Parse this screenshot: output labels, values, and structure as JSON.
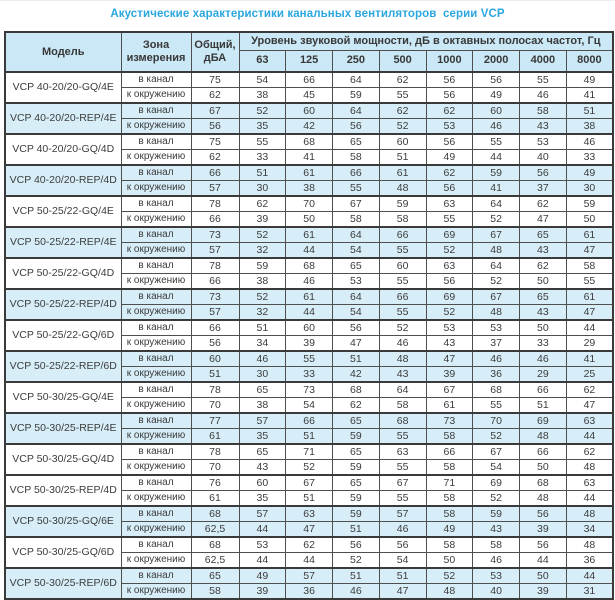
{
  "title": "Акустические характеристики канальных вентиляторов  серии VCP",
  "colors": {
    "accent_title": "#2ba7df",
    "header_bg": "#cbe8f6",
    "shaded_row_bg": "#d7eef9",
    "border": "#4f4f4f",
    "text": "#3c3c3c"
  },
  "table": {
    "headers": {
      "model": "Модель",
      "zone": "Зона измерения",
      "total": "Общий, дБА",
      "level": "Уровень звуковой мощности, дБ в октавных полосах частот, Гц",
      "freqs": [
        "63",
        "125",
        "250",
        "500",
        "1000",
        "2000",
        "4000",
        "8000"
      ]
    },
    "groups": [
      {
        "model": "VCP 40-20/20-GQ/4E",
        "shaded": false,
        "rows": [
          {
            "zone": "в канал",
            "total": "75",
            "values": [
              "54",
              "66",
              "64",
              "62",
              "56",
              "56",
              "55",
              "49"
            ]
          },
          {
            "zone": "к окружению",
            "total": "62",
            "values": [
              "38",
              "45",
              "59",
              "55",
              "56",
              "49",
              "46",
              "41"
            ]
          }
        ]
      },
      {
        "model": "VCP 40-20/20-REP/4E",
        "shaded": true,
        "rows": [
          {
            "zone": "в канал",
            "total": "67",
            "values": [
              "52",
              "60",
              "64",
              "62",
              "62",
              "60",
              "58",
              "51"
            ]
          },
          {
            "zone": "к окружению",
            "total": "56",
            "values": [
              "35",
              "42",
              "56",
              "52",
              "53",
              "46",
              "43",
              "38"
            ]
          }
        ]
      },
      {
        "model": "VCP 40-20/20-GQ/4D",
        "shaded": false,
        "rows": [
          {
            "zone": "в канал",
            "total": "75",
            "values": [
              "55",
              "68",
              "65",
              "60",
              "56",
              "55",
              "53",
              "46"
            ]
          },
          {
            "zone": "к окружению",
            "total": "62",
            "values": [
              "33",
              "41",
              "58",
              "51",
              "49",
              "44",
              "40",
              "33"
            ]
          }
        ]
      },
      {
        "model": "VCP 40-20/20-REP/4D",
        "shaded": true,
        "rows": [
          {
            "zone": "в канал",
            "total": "66",
            "values": [
              "51",
              "61",
              "66",
              "61",
              "62",
              "59",
              "56",
              "49"
            ]
          },
          {
            "zone": "к окружению",
            "total": "57",
            "values": [
              "30",
              "38",
              "55",
              "48",
              "56",
              "41",
              "37",
              "30"
            ]
          }
        ]
      },
      {
        "model": "VCP 50-25/22-GQ/4E",
        "shaded": false,
        "rows": [
          {
            "zone": "в канал",
            "total": "78",
            "values": [
              "62",
              "70",
              "67",
              "59",
              "63",
              "64",
              "62",
              "59"
            ]
          },
          {
            "zone": "к окружению",
            "total": "66",
            "values": [
              "39",
              "50",
              "58",
              "58",
              "55",
              "52",
              "47",
              "50"
            ]
          }
        ]
      },
      {
        "model": "VCP 50-25/22-REP/4E",
        "shaded": true,
        "rows": [
          {
            "zone": "в канал",
            "total": "73",
            "values": [
              "52",
              "61",
              "64",
              "66",
              "69",
              "67",
              "65",
              "61"
            ]
          },
          {
            "zone": "к окружению",
            "total": "57",
            "values": [
              "32",
              "44",
              "54",
              "55",
              "52",
              "48",
              "43",
              "47"
            ]
          }
        ]
      },
      {
        "model": "VCP 50-25/22-GQ/4D",
        "shaded": false,
        "rows": [
          {
            "zone": "в канал",
            "total": "78",
            "values": [
              "59",
              "68",
              "65",
              "60",
              "63",
              "64",
              "62",
              "58"
            ]
          },
          {
            "zone": "к окружению",
            "total": "66",
            "values": [
              "38",
              "46",
              "53",
              "55",
              "56",
              "52",
              "50",
              "55"
            ]
          }
        ]
      },
      {
        "model": "VCP 50-25/22-REP/4D",
        "shaded": true,
        "rows": [
          {
            "zone": "в канал",
            "total": "73",
            "values": [
              "52",
              "61",
              "64",
              "66",
              "69",
              "67",
              "65",
              "61"
            ]
          },
          {
            "zone": "к окружению",
            "total": "57",
            "values": [
              "32",
              "44",
              "54",
              "55",
              "52",
              "48",
              "43",
              "47"
            ]
          }
        ]
      },
      {
        "model": "VCP 50-25/22-GQ/6D",
        "shaded": false,
        "rows": [
          {
            "zone": "в канал",
            "total": "66",
            "values": [
              "51",
              "60",
              "56",
              "52",
              "53",
              "53",
              "50",
              "44"
            ]
          },
          {
            "zone": "к окружению",
            "total": "56",
            "values": [
              "34",
              "39",
              "47",
              "46",
              "43",
              "37",
              "33",
              "29"
            ]
          }
        ]
      },
      {
        "model": "VCP 50-25/22-REP/6D",
        "shaded": true,
        "rows": [
          {
            "zone": "в канал",
            "total": "60",
            "values": [
              "46",
              "55",
              "51",
              "48",
              "47",
              "46",
              "46",
              "41"
            ]
          },
          {
            "zone": "к окружению",
            "total": "51",
            "values": [
              "30",
              "33",
              "42",
              "43",
              "39",
              "36",
              "29",
              "25"
            ]
          }
        ]
      },
      {
        "model": "VCP 50-30/25-GQ/4E",
        "shaded": false,
        "rows": [
          {
            "zone": "в канал",
            "total": "78",
            "values": [
              "65",
              "73",
              "68",
              "64",
              "67",
              "68",
              "66",
              "62"
            ]
          },
          {
            "zone": "к окружению",
            "total": "70",
            "values": [
              "38",
              "54",
              "62",
              "58",
              "61",
              "55",
              "51",
              "47"
            ]
          }
        ]
      },
      {
        "model": "VCP 50-30/25-REP/4E",
        "shaded": true,
        "rows": [
          {
            "zone": "в канал",
            "total": "77",
            "values": [
              "57",
              "66",
              "65",
              "68",
              "73",
              "70",
              "69",
              "63"
            ]
          },
          {
            "zone": "к окружению",
            "total": "61",
            "values": [
              "35",
              "51",
              "59",
              "55",
              "58",
              "52",
              "48",
              "44"
            ]
          }
        ]
      },
      {
        "model": "VCP 50-30/25-GQ/4D",
        "shaded": false,
        "rows": [
          {
            "zone": "в канал",
            "total": "78",
            "values": [
              "65",
              "71",
              "65",
              "63",
              "66",
              "67",
              "66",
              "62"
            ]
          },
          {
            "zone": "к окружению",
            "total": "70",
            "values": [
              "43",
              "52",
              "59",
              "55",
              "58",
              "54",
              "50",
              "48"
            ]
          }
        ]
      },
      {
        "model": "VCP 50-30/25-REP/4D",
        "shaded": false,
        "rows": [
          {
            "zone": "в канал",
            "total": "76",
            "values": [
              "60",
              "67",
              "65",
              "67",
              "71",
              "69",
              "68",
              "63"
            ]
          },
          {
            "zone": "к окружению",
            "total": "61",
            "values": [
              "35",
              "51",
              "59",
              "55",
              "58",
              "52",
              "48",
              "44"
            ]
          }
        ]
      },
      {
        "model": "VCP 50-30/25-GQ/6E",
        "shaded": true,
        "rows": [
          {
            "zone": "в канал",
            "total": "68",
            "values": [
              "57",
              "63",
              "59",
              "57",
              "58",
              "59",
              "56",
              "48"
            ]
          },
          {
            "zone": "к окружению",
            "total": "62,5",
            "values": [
              "44",
              "47",
              "51",
              "46",
              "49",
              "43",
              "39",
              "34"
            ]
          }
        ]
      },
      {
        "model": "VCP 50-30/25-GQ/6D",
        "shaded": false,
        "rows": [
          {
            "zone": "в канал",
            "total": "68",
            "values": [
              "53",
              "62",
              "56",
              "56",
              "58",
              "58",
              "56",
              "48"
            ]
          },
          {
            "zone": "к окружению",
            "total": "62,5",
            "values": [
              "44",
              "44",
              "52",
              "54",
              "50",
              "46",
              "44",
              "36"
            ]
          }
        ]
      },
      {
        "model": "VCP 50-30/25-REP/6D",
        "shaded": true,
        "rows": [
          {
            "zone": "в канал",
            "total": "65",
            "values": [
              "49",
              "57",
              "51",
              "51",
              "52",
              "53",
              "50",
              "44"
            ]
          },
          {
            "zone": "к окружению",
            "total": "58",
            "values": [
              "39",
              "36",
              "46",
              "47",
              "48",
              "40",
              "39",
              "31"
            ]
          }
        ]
      }
    ]
  }
}
